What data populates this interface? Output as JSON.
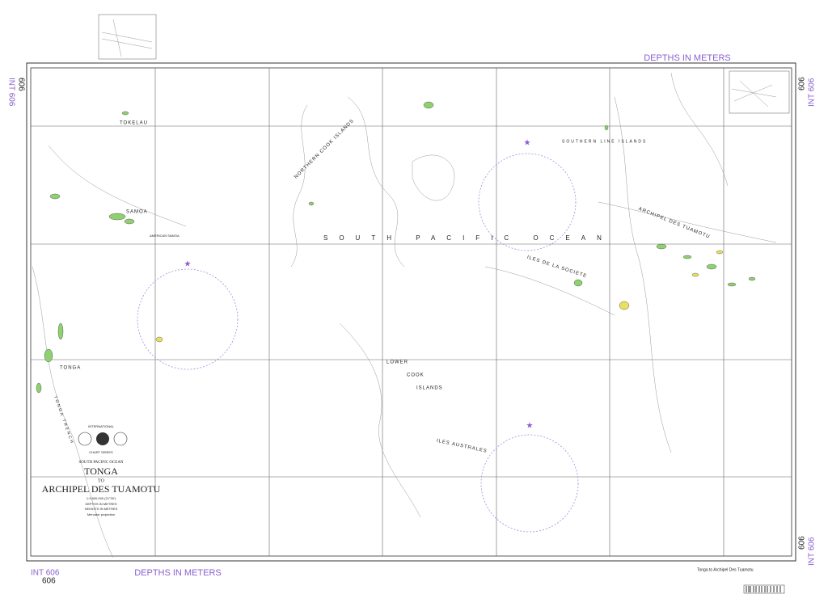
{
  "header": {
    "depths_label": "DEPTHS IN METERS",
    "chart_number_int": "INT 606",
    "chart_number": "606"
  },
  "place_labels": {
    "tokelau": "TOKELAU",
    "samoa": "SAMOA",
    "american_samoa": "AMERICAN SAMOA",
    "tonga": "TONGA",
    "tonga_trench": "TONGA TRENCH",
    "northern_cook": "NORTHERN COOK ISLANDS",
    "ocean": "SOUTH PACIFIC OCEAN",
    "lower": "LOWER",
    "cook": "COOK",
    "islands": "ISLANDS",
    "southern_line": "SOUTHERN LINE ISLANDS",
    "tuamotu": "ARCHIPEL DES TUAMOTU",
    "societe": "ILES DE LA SOCIETE",
    "australes": "ILES AUSTRALES"
  },
  "title_block": {
    "international": "INTERNATIONAL",
    "series": "CHART SERIES",
    "region": "SOUTH PACIFIC OCEAN",
    "from": "TONGA",
    "to": "TO",
    "dest": "ARCHIPEL DES TUAMOTU",
    "scale": "1:3,500,000 (21°30')",
    "depths": "DEPTHS IN METRES",
    "heights": "HEIGHTS IN METRES",
    "projection": "Mercator projection"
  },
  "footer": {
    "caption": "Tonga to Archipel Des Tuamotu"
  }
}
